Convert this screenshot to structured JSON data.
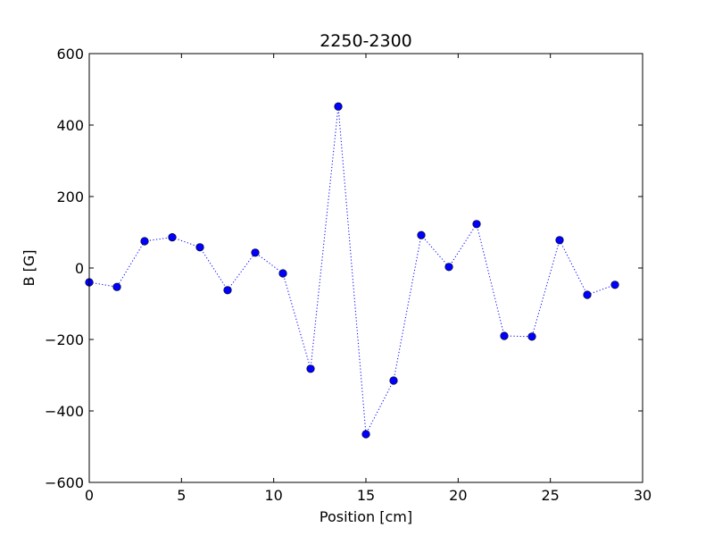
{
  "chart_data": {
    "type": "line",
    "title": "2250-2300",
    "xlabel": "Position [cm]",
    "ylabel": "B [G]",
    "xlim": [
      0,
      30
    ],
    "ylim": [
      -600,
      600
    ],
    "xticks": [
      0,
      5,
      10,
      15,
      20,
      25,
      30
    ],
    "yticks": [
      -600,
      -400,
      -200,
      0,
      200,
      400,
      600
    ],
    "xtick_labels": [
      "0",
      "5",
      "10",
      "15",
      "20",
      "25",
      "30"
    ],
    "ytick_labels": [
      "−600",
      "−400",
      "−200",
      "0",
      "200",
      "400",
      "600"
    ],
    "grid": false,
    "legend": "none",
    "series": [
      {
        "line_style": "dotted",
        "marker": "circle",
        "color": "#0000ff",
        "x": [
          0,
          1.5,
          3,
          4.5,
          6,
          7.5,
          9,
          10.5,
          12,
          13.5,
          15,
          16.5,
          18,
          19.5,
          21,
          22.5,
          24,
          25.5,
          27,
          28.5
        ],
        "y": [
          -40,
          -53,
          75,
          86,
          58,
          -62,
          43,
          -15,
          -282,
          452,
          -465,
          -315,
          92,
          3,
          123,
          -190,
          -192,
          78,
          -75,
          -47
        ]
      }
    ]
  }
}
